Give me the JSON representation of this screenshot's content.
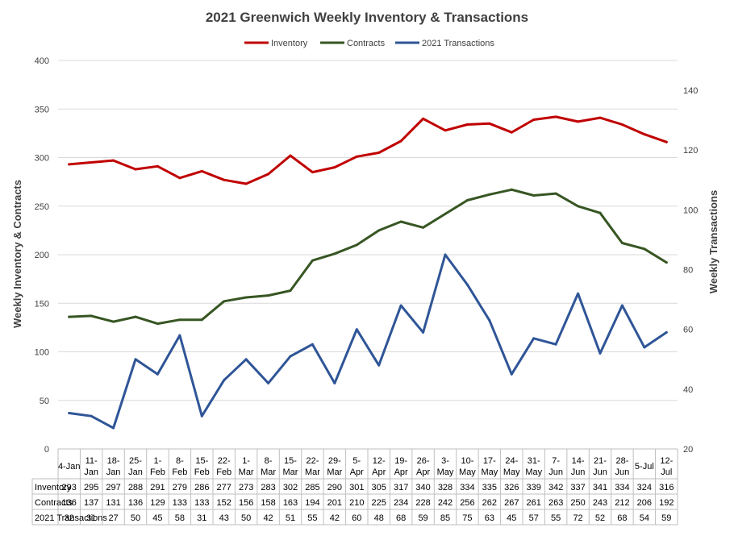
{
  "chart_data": {
    "type": "line",
    "title": "2021 Greenwich Weekly Inventory & Transactions",
    "ylabel_left": "Weekly Inventory  & Contracts",
    "ylabel_right": "Weekly Transactions",
    "ylim_left": [
      0,
      400
    ],
    "ylim_right": [
      20,
      150
    ],
    "yticks_left": [
      0,
      50,
      100,
      150,
      200,
      250,
      300,
      350,
      400
    ],
    "yticks_right": [
      20,
      40,
      60,
      80,
      100,
      120,
      140
    ],
    "grid": true,
    "legend_position": "top",
    "categories": [
      "4-Jan",
      "11-Jan",
      "18-Jan",
      "25-Jan",
      "1-Feb",
      "8-Feb",
      "15-Feb",
      "22-Feb",
      "1-Mar",
      "8-Mar",
      "15-Mar",
      "22-Mar",
      "29-Mar",
      "5-Apr",
      "12-Apr",
      "19-Apr",
      "26-Apr",
      "3-May",
      "10-May",
      "17-May",
      "24-May",
      "31-May",
      "7-Jun",
      "14-Jun",
      "21-Jun",
      "28-Jun",
      "5-Jul",
      "12-Jul"
    ],
    "series": [
      {
        "name": "Inventory",
        "axis": "left",
        "color": "#C00000",
        "values": [
          293,
          295,
          297,
          288,
          291,
          279,
          286,
          277,
          273,
          283,
          302,
          285,
          290,
          301,
          305,
          317,
          340,
          328,
          334,
          335,
          326,
          339,
          342,
          337,
          341,
          334,
          324,
          316
        ]
      },
      {
        "name": "Contracts",
        "axis": "left",
        "color": "#375623",
        "values": [
          136,
          137,
          131,
          136,
          129,
          133,
          133,
          152,
          156,
          158,
          163,
          194,
          201,
          210,
          225,
          234,
          228,
          242,
          256,
          262,
          267,
          261,
          263,
          250,
          243,
          212,
          206,
          192
        ]
      },
      {
        "name": "2021 Transactions",
        "axis": "right",
        "color": "#2F5597",
        "values": [
          32,
          31,
          27,
          50,
          45,
          58,
          31,
          43,
          50,
          42,
          51,
          55,
          42,
          60,
          48,
          68,
          59,
          85,
          75,
          63,
          45,
          57,
          55,
          72,
          52,
          68,
          54,
          59
        ]
      }
    ]
  }
}
